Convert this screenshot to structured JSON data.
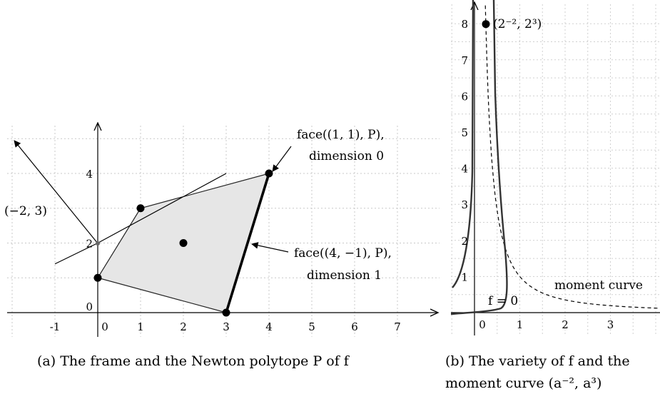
{
  "chart_data": [
    {
      "type": "scatter",
      "panel": "a",
      "caption": "(a) The frame and the Newton polytope P of f",
      "x_ticks": [
        "-1",
        "0",
        "1",
        "2",
        "3",
        "4",
        "5",
        "6",
        "7"
      ],
      "y_ticks": [
        "2",
        "4"
      ],
      "y_zero_label": "0",
      "grid": true,
      "xlim": [
        -2,
        8
      ],
      "ylim": [
        0,
        5
      ],
      "points": [
        {
          "x": 0,
          "y": 1
        },
        {
          "x": 1,
          "y": 3
        },
        {
          "x": 2,
          "y": 2
        },
        {
          "x": 3,
          "y": 0
        },
        {
          "x": 4,
          "y": 4
        }
      ],
      "polytope_vertices": [
        [
          0,
          1
        ],
        [
          1,
          3
        ],
        [
          4,
          4
        ],
        [
          3,
          0
        ]
      ],
      "highlighted_face": [
        [
          3,
          0
        ],
        [
          4,
          4
        ]
      ],
      "frame_lines": [
        {
          "from": [
            -1,
            1.4
          ],
          "to": [
            0,
            2
          ]
        },
        {
          "from": [
            0,
            2
          ],
          "to": [
            3,
            4
          ]
        }
      ],
      "annotations": [
        {
          "text": "(−2, 3)",
          "target": "normal vector"
        },
        {
          "line1": "face((1, 1), P),",
          "line2": "dimension 0"
        },
        {
          "line1": "face((4, −1), P),",
          "line2": "dimension 1"
        }
      ]
    },
    {
      "type": "line",
      "panel": "b",
      "caption_line1": "(b) The variety of f and the",
      "caption_line2": "moment curve (a⁻², a³)",
      "x_ticks": [
        "0",
        "1",
        "2",
        "3"
      ],
      "y_ticks": [
        "1",
        "2",
        "3",
        "4",
        "5",
        "6",
        "7",
        "8"
      ],
      "grid": true,
      "xlim": [
        -0.5,
        4
      ],
      "ylim": [
        0,
        8.5
      ],
      "series_labels": [
        "f = 0",
        "moment curve"
      ],
      "highlight_point": {
        "x": 0.25,
        "y": 8,
        "label": "(2⁻², 2³)"
      }
    }
  ]
}
